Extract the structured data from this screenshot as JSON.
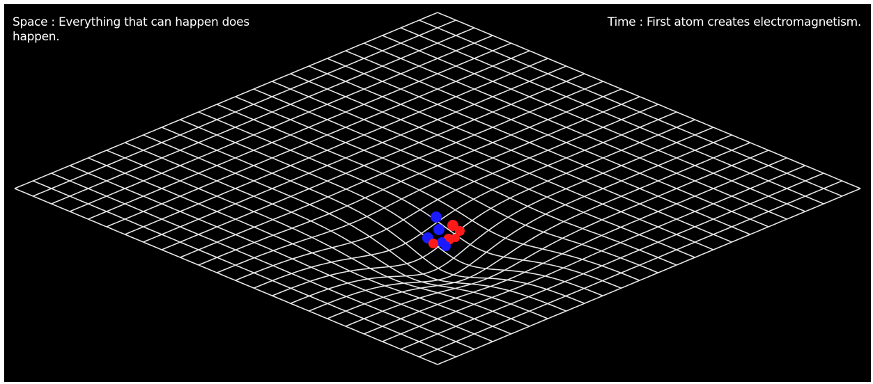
{
  "space_caption": "Space : Everything that can happen does\nhappen.",
  "time_caption": "Time : First atom creates electromagnetism.",
  "colors": {
    "background": "#000000",
    "grid": "#e6e6e6",
    "proton": "#ff1a1a",
    "neutron": "#1a1aff"
  },
  "scene": {
    "grid_lines_per_direction": 24,
    "particles": [
      "neutron",
      "proton",
      "neutron",
      "proton",
      "neutron",
      "proton",
      "neutron",
      "proton",
      "neutron",
      "proton"
    ]
  }
}
